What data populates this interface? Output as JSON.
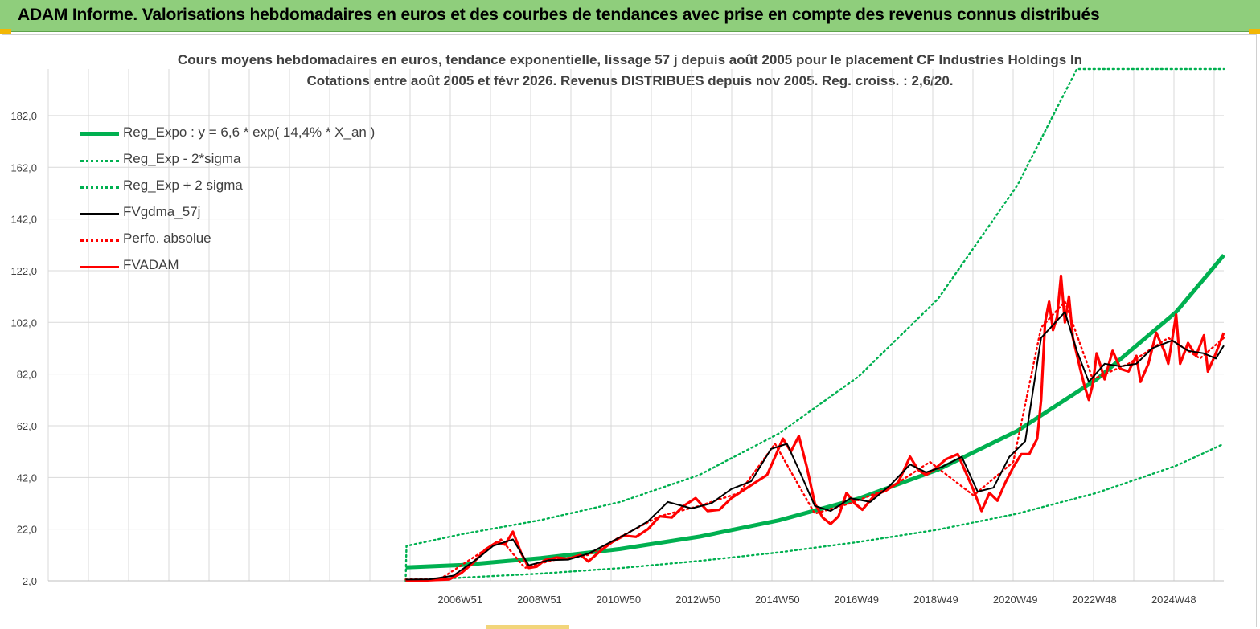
{
  "banner": {
    "title": "ADAM Informe. Valorisations hebdomadaires en euros et des courbes de tendances avec prise en compte des revenus connus distribués"
  },
  "chart_data": {
    "type": "line",
    "title_line1": "Cours moyens hebdomadaires en euros, tendance exponentielle, lissage 57 j depuis août 2005 pour le placement CF Industries Holdings In",
    "title_line2": "Cotations entre août 2005 et févr 2026. Revenus DISTRIBUES depuis nov 2005. Reg. croiss. : 2,6/20.",
    "y_ticks": [
      "2,0",
      "22,0",
      "42,0",
      "62,0",
      "82,0",
      "102,0",
      "122,0",
      "142,0",
      "162,0",
      "182,0"
    ],
    "ylim": [
      2,
      200
    ],
    "x_ticks": [
      "2006W51",
      "2008W51",
      "2010W50",
      "2012W50",
      "2014W50",
      "2016W49",
      "2018W49",
      "2020W49",
      "2022W48",
      "2024W48"
    ],
    "x_tick_years": [
      2006.97,
      2008.97,
      2010.96,
      2012.96,
      2014.96,
      2016.95,
      2018.95,
      2020.95,
      2022.94,
      2024.94
    ],
    "xlim": [
      1996.6,
      2026.2
    ],
    "grid": true,
    "legend_position": "top-left",
    "series": [
      {
        "name": "Reg_Expo : y = 6,6 * exp( 14,4% *  X_an )",
        "color": "#00b050",
        "style": "solid-thick",
        "x": [
          2005.6,
          2007,
          2009,
          2011,
          2013,
          2015,
          2017,
          2019,
          2021,
          2023,
          2025,
          2026.2
        ],
        "y": [
          7.2,
          8.1,
          10.8,
          14.3,
          19.1,
          25.4,
          33.8,
          45.0,
          60.0,
          80.0,
          106.0,
          128.0
        ]
      },
      {
        "name": "Reg_Exp - 2*sigma",
        "color": "#00b050",
        "style": "dotted",
        "x": [
          2005.6,
          2007,
          2009,
          2011,
          2013,
          2015,
          2017,
          2019,
          2021,
          2023,
          2025,
          2026.2
        ],
        "y": [
          2.0,
          3.2,
          4.8,
          6.9,
          9.7,
          13.0,
          17.0,
          21.8,
          28.0,
          36.0,
          46.5,
          55.0
        ]
      },
      {
        "name": "Reg_Exp + 2 sigma",
        "color": "#00b050",
        "style": "dotted",
        "x": [
          2005.6,
          2005.62,
          2007,
          2009,
          2011,
          2013,
          2015,
          2017,
          2019,
          2021,
          2022.5,
          2026.2
        ],
        "y": [
          2.0,
          15.5,
          20.0,
          25.5,
          32.5,
          43.0,
          59.0,
          81.0,
          111.0,
          155.0,
          200.0,
          200.0
        ]
      },
      {
        "name": "FVgdma_57j",
        "color": "#000000",
        "style": "solid",
        "x": [
          2005.6,
          2006.2,
          2006.8,
          2007.4,
          2007.8,
          2008.3,
          2008.7,
          2009.2,
          2009.7,
          2010.2,
          2010.7,
          2011.2,
          2011.7,
          2012.2,
          2012.8,
          2013.3,
          2013.8,
          2014.3,
          2014.8,
          2015.2,
          2015.5,
          2015.9,
          2016.3,
          2016.8,
          2017.3,
          2017.8,
          2018.3,
          2018.7,
          2019.1,
          2019.6,
          2020.0,
          2020.4,
          2020.8,
          2021.2,
          2021.6,
          2021.9,
          2022.2,
          2022.5,
          2022.8,
          2023.2,
          2023.6,
          2024.0,
          2024.4,
          2024.9,
          2025.3,
          2025.7,
          2026.0,
          2026.2
        ],
        "y": [
          2.5,
          2.6,
          4.0,
          10.5,
          15.5,
          18.0,
          8.0,
          10.0,
          10.2,
          12.5,
          16.5,
          20.5,
          25.0,
          32.5,
          30.0,
          32.0,
          37.5,
          40.5,
          53.0,
          55.0,
          45.0,
          31.0,
          29.0,
          34.0,
          32.5,
          39.0,
          47.0,
          44.0,
          46.0,
          50.0,
          36.5,
          38.0,
          50.0,
          56.0,
          96.0,
          101.0,
          106.0,
          91.0,
          79.0,
          86.0,
          85.0,
          86.0,
          92.0,
          95.0,
          91.0,
          90.0,
          88.0,
          93.0
        ]
      },
      {
        "name": "Perfo. absolue",
        "color": "#ff0000",
        "style": "dotted",
        "x": [
          2005.6,
          2006.5,
          2007.5,
          2008.0,
          2008.6,
          2009.3,
          2010.2,
          2011.0,
          2012.0,
          2013.0,
          2014.0,
          2014.9,
          2015.9,
          2016.8,
          2017.8,
          2018.8,
          2019.9,
          2020.9,
          2021.6,
          2022.2,
          2022.9,
          2023.8,
          2024.8,
          2025.6,
          2026.2
        ],
        "y": [
          2.5,
          3.0,
          13.0,
          18.0,
          7.0,
          10.0,
          12.0,
          19.0,
          27.0,
          31.0,
          36.0,
          55.0,
          28.0,
          32.0,
          38.0,
          48.0,
          35.0,
          48.0,
          100.0,
          110.0,
          80.0,
          86.0,
          96.0,
          88.0,
          96.0
        ]
      },
      {
        "name": "FVADAM",
        "color": "#ff0000",
        "style": "solid-thick",
        "x": [
          2005.6,
          2005.9,
          2006.3,
          2006.7,
          2007.0,
          2007.3,
          2007.6,
          2007.9,
          2008.1,
          2008.3,
          2008.5,
          2008.7,
          2008.9,
          2009.1,
          2009.4,
          2009.7,
          2010.0,
          2010.2,
          2010.5,
          2010.8,
          2011.1,
          2011.4,
          2011.7,
          2012.0,
          2012.3,
          2012.6,
          2012.9,
          2013.2,
          2013.5,
          2013.8,
          2014.1,
          2014.4,
          2014.7,
          2014.9,
          2015.1,
          2015.3,
          2015.5,
          2015.7,
          2015.9,
          2016.1,
          2016.3,
          2016.5,
          2016.7,
          2016.9,
          2017.1,
          2017.4,
          2017.7,
          2018.0,
          2018.3,
          2018.5,
          2018.7,
          2018.9,
          2019.2,
          2019.5,
          2019.7,
          2019.9,
          2020.1,
          2020.3,
          2020.5,
          2020.7,
          2020.9,
          2021.1,
          2021.3,
          2021.5,
          2021.6,
          2021.7,
          2021.8,
          2021.9,
          2022.0,
          2022.1,
          2022.2,
          2022.3,
          2022.4,
          2022.6,
          2022.7,
          2022.8,
          2022.9,
          2023.0,
          2023.2,
          2023.4,
          2023.6,
          2023.8,
          2024.0,
          2024.1,
          2024.3,
          2024.5,
          2024.7,
          2024.8,
          2025.0,
          2025.1,
          2025.3,
          2025.5,
          2025.7,
          2025.8,
          2026.0,
          2026.2
        ],
        "y": [
          2.2,
          2.0,
          2.3,
          2.6,
          5.0,
          9.0,
          14.0,
          17.0,
          16.0,
          21.0,
          13.0,
          7.0,
          7.5,
          10.0,
          11.0,
          10.5,
          12.0,
          9.5,
          13.5,
          17.0,
          19.5,
          19.0,
          22.0,
          27.0,
          26.5,
          31.0,
          34.0,
          29.0,
          29.5,
          34.0,
          37.0,
          40.0,
          43.0,
          50.0,
          57.0,
          52.0,
          58.0,
          46.0,
          32.0,
          26.5,
          24.0,
          27.0,
          36.0,
          32.0,
          29.5,
          35.0,
          37.0,
          40.0,
          50.0,
          45.0,
          43.0,
          45.0,
          49.0,
          51.0,
          44.0,
          37.0,
          29.0,
          36.0,
          33.0,
          40.0,
          46.0,
          51.0,
          51.0,
          57.0,
          72.0,
          102.0,
          110.0,
          99.0,
          104.0,
          120.0,
          102.0,
          112.0,
          96.0,
          83.0,
          77.0,
          72.0,
          78.0,
          90.0,
          80.0,
          91.0,
          84.0,
          83.0,
          89.0,
          79.0,
          86.0,
          98.0,
          91.0,
          86.0,
          105.0,
          86.0,
          94.0,
          89.0,
          97.0,
          83.0,
          90.0,
          98.0
        ]
      }
    ]
  }
}
